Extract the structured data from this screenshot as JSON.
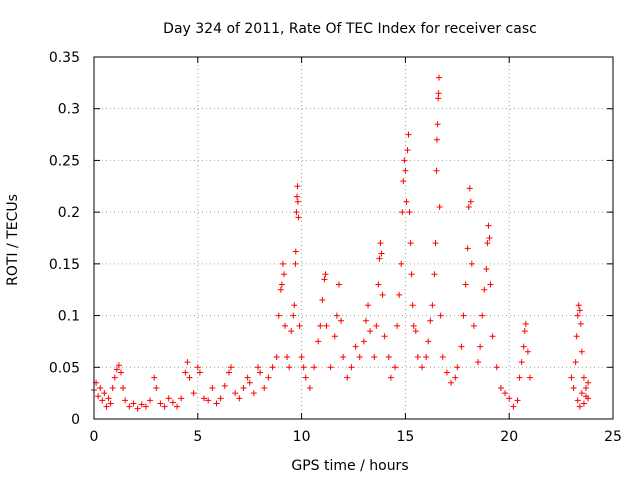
{
  "chart_data": {
    "type": "scatter",
    "title": "Day 324 of 2011, Rate Of TEC Index for receiver casc",
    "xlabel": "GPS time / hours",
    "ylabel": "ROTI / TECUs",
    "xlim": [
      0,
      25
    ],
    "ylim": [
      0,
      0.35
    ],
    "xticks": [
      0,
      5,
      10,
      15,
      20,
      25
    ],
    "yticks": [
      0,
      0.05,
      0.1,
      0.15,
      0.2,
      0.25,
      0.3,
      0.35
    ],
    "xtick_labels": [
      "0",
      "5",
      "10",
      "15",
      "20",
      "25"
    ],
    "ytick_labels": [
      "0",
      "0.05",
      "0.1",
      "0.15",
      "0.2",
      "0.25",
      "0.3",
      "0.35"
    ],
    "grid": true,
    "marker": "+",
    "color": "#ff0000",
    "series": [
      {
        "name": "ROTI",
        "points": [
          [
            0.0,
            0.028
          ],
          [
            0.1,
            0.035
          ],
          [
            0.2,
            0.022
          ],
          [
            0.3,
            0.03
          ],
          [
            0.4,
            0.018
          ],
          [
            0.5,
            0.025
          ],
          [
            0.6,
            0.012
          ],
          [
            0.7,
            0.02
          ],
          [
            0.8,
            0.015
          ],
          [
            0.9,
            0.03
          ],
          [
            1.0,
            0.04
          ],
          [
            1.1,
            0.048
          ],
          [
            1.2,
            0.052
          ],
          [
            1.3,
            0.045
          ],
          [
            1.4,
            0.03
          ],
          [
            1.5,
            0.018
          ],
          [
            1.7,
            0.012
          ],
          [
            1.9,
            0.015
          ],
          [
            2.1,
            0.01
          ],
          [
            2.3,
            0.014
          ],
          [
            2.5,
            0.012
          ],
          [
            2.7,
            0.018
          ],
          [
            2.9,
            0.04
          ],
          [
            3.0,
            0.03
          ],
          [
            3.2,
            0.015
          ],
          [
            3.4,
            0.012
          ],
          [
            3.6,
            0.02
          ],
          [
            3.8,
            0.016
          ],
          [
            4.0,
            0.012
          ],
          [
            4.2,
            0.02
          ],
          [
            4.4,
            0.045
          ],
          [
            4.5,
            0.055
          ],
          [
            4.6,
            0.04
          ],
          [
            4.8,
            0.025
          ],
          [
            5.0,
            0.05
          ],
          [
            5.1,
            0.045
          ],
          [
            5.3,
            0.02
          ],
          [
            5.5,
            0.018
          ],
          [
            5.7,
            0.03
          ],
          [
            5.9,
            0.015
          ],
          [
            6.1,
            0.02
          ],
          [
            6.3,
            0.032
          ],
          [
            6.5,
            0.045
          ],
          [
            6.6,
            0.05
          ],
          [
            6.8,
            0.025
          ],
          [
            7.0,
            0.02
          ],
          [
            7.2,
            0.03
          ],
          [
            7.4,
            0.04
          ],
          [
            7.5,
            0.035
          ],
          [
            7.7,
            0.025
          ],
          [
            7.9,
            0.05
          ],
          [
            8.0,
            0.045
          ],
          [
            8.2,
            0.03
          ],
          [
            8.4,
            0.04
          ],
          [
            8.6,
            0.05
          ],
          [
            8.8,
            0.06
          ],
          [
            8.9,
            0.1
          ],
          [
            9.0,
            0.125
          ],
          [
            9.05,
            0.13
          ],
          [
            9.1,
            0.15
          ],
          [
            9.15,
            0.14
          ],
          [
            9.2,
            0.09
          ],
          [
            9.3,
            0.06
          ],
          [
            9.4,
            0.05
          ],
          [
            9.5,
            0.085
          ],
          [
            9.6,
            0.1
          ],
          [
            9.65,
            0.11
          ],
          [
            9.7,
            0.15
          ],
          [
            9.72,
            0.162
          ],
          [
            9.75,
            0.2
          ],
          [
            9.78,
            0.215
          ],
          [
            9.8,
            0.225
          ],
          [
            9.82,
            0.21
          ],
          [
            9.85,
            0.195
          ],
          [
            9.9,
            0.09
          ],
          [
            10.0,
            0.06
          ],
          [
            10.1,
            0.05
          ],
          [
            10.2,
            0.04
          ],
          [
            10.4,
            0.03
          ],
          [
            10.6,
            0.05
          ],
          [
            10.8,
            0.075
          ],
          [
            10.9,
            0.09
          ],
          [
            11.0,
            0.115
          ],
          [
            11.1,
            0.135
          ],
          [
            11.15,
            0.14
          ],
          [
            11.2,
            0.09
          ],
          [
            11.4,
            0.05
          ],
          [
            11.6,
            0.08
          ],
          [
            11.7,
            0.1
          ],
          [
            11.8,
            0.13
          ],
          [
            11.9,
            0.095
          ],
          [
            12.0,
            0.06
          ],
          [
            12.2,
            0.04
          ],
          [
            12.4,
            0.05
          ],
          [
            12.6,
            0.07
          ],
          [
            12.8,
            0.06
          ],
          [
            13.0,
            0.075
          ],
          [
            13.1,
            0.095
          ],
          [
            13.2,
            0.11
          ],
          [
            13.3,
            0.085
          ],
          [
            13.5,
            0.06
          ],
          [
            13.6,
            0.09
          ],
          [
            13.7,
            0.13
          ],
          [
            13.75,
            0.155
          ],
          [
            13.8,
            0.17
          ],
          [
            13.85,
            0.16
          ],
          [
            13.9,
            0.12
          ],
          [
            14.0,
            0.08
          ],
          [
            14.2,
            0.06
          ],
          [
            14.3,
            0.04
          ],
          [
            14.5,
            0.05
          ],
          [
            14.6,
            0.09
          ],
          [
            14.7,
            0.12
          ],
          [
            14.8,
            0.15
          ],
          [
            14.85,
            0.2
          ],
          [
            14.9,
            0.23
          ],
          [
            14.95,
            0.25
          ],
          [
            15.0,
            0.24
          ],
          [
            15.05,
            0.21
          ],
          [
            15.1,
            0.26
          ],
          [
            15.15,
            0.275
          ],
          [
            15.2,
            0.2
          ],
          [
            15.25,
            0.17
          ],
          [
            15.3,
            0.14
          ],
          [
            15.35,
            0.11
          ],
          [
            15.4,
            0.09
          ],
          [
            15.5,
            0.085
          ],
          [
            15.6,
            0.06
          ],
          [
            15.8,
            0.05
          ],
          [
            16.0,
            0.06
          ],
          [
            16.1,
            0.075
          ],
          [
            16.2,
            0.095
          ],
          [
            16.3,
            0.11
          ],
          [
            16.4,
            0.14
          ],
          [
            16.45,
            0.17
          ],
          [
            16.5,
            0.24
          ],
          [
            16.52,
            0.27
          ],
          [
            16.55,
            0.285
          ],
          [
            16.58,
            0.31
          ],
          [
            16.6,
            0.315
          ],
          [
            16.62,
            0.33
          ],
          [
            16.65,
            0.205
          ],
          [
            16.7,
            0.1
          ],
          [
            16.8,
            0.06
          ],
          [
            17.0,
            0.045
          ],
          [
            17.2,
            0.035
          ],
          [
            17.4,
            0.04
          ],
          [
            17.5,
            0.05
          ],
          [
            17.7,
            0.07
          ],
          [
            17.8,
            0.1
          ],
          [
            17.9,
            0.13
          ],
          [
            18.0,
            0.165
          ],
          [
            18.05,
            0.205
          ],
          [
            18.1,
            0.223
          ],
          [
            18.15,
            0.21
          ],
          [
            18.2,
            0.15
          ],
          [
            18.3,
            0.09
          ],
          [
            18.5,
            0.055
          ],
          [
            18.6,
            0.07
          ],
          [
            18.7,
            0.1
          ],
          [
            18.8,
            0.125
          ],
          [
            18.9,
            0.145
          ],
          [
            18.95,
            0.17
          ],
          [
            19.0,
            0.187
          ],
          [
            19.05,
            0.175
          ],
          [
            19.1,
            0.13
          ],
          [
            19.2,
            0.08
          ],
          [
            19.4,
            0.05
          ],
          [
            19.6,
            0.03
          ],
          [
            19.8,
            0.025
          ],
          [
            20.0,
            0.02
          ],
          [
            20.2,
            0.012
          ],
          [
            20.4,
            0.018
          ],
          [
            20.5,
            0.04
          ],
          [
            20.6,
            0.055
          ],
          [
            20.7,
            0.07
          ],
          [
            20.75,
            0.085
          ],
          [
            20.8,
            0.092
          ],
          [
            20.9,
            0.065
          ],
          [
            21.0,
            0.04
          ],
          [
            23.0,
            0.04
          ],
          [
            23.1,
            0.03
          ],
          [
            23.2,
            0.055
          ],
          [
            23.25,
            0.08
          ],
          [
            23.3,
            0.1
          ],
          [
            23.35,
            0.11
          ],
          [
            23.4,
            0.105
          ],
          [
            23.45,
            0.092
          ],
          [
            23.5,
            0.065
          ],
          [
            23.6,
            0.04
          ],
          [
            23.7,
            0.03
          ],
          [
            23.8,
            0.02
          ],
          [
            23.5,
            0.025
          ],
          [
            23.6,
            0.015
          ],
          [
            23.7,
            0.022
          ],
          [
            23.8,
            0.035
          ],
          [
            23.3,
            0.018
          ],
          [
            23.4,
            0.012
          ]
        ]
      }
    ]
  }
}
